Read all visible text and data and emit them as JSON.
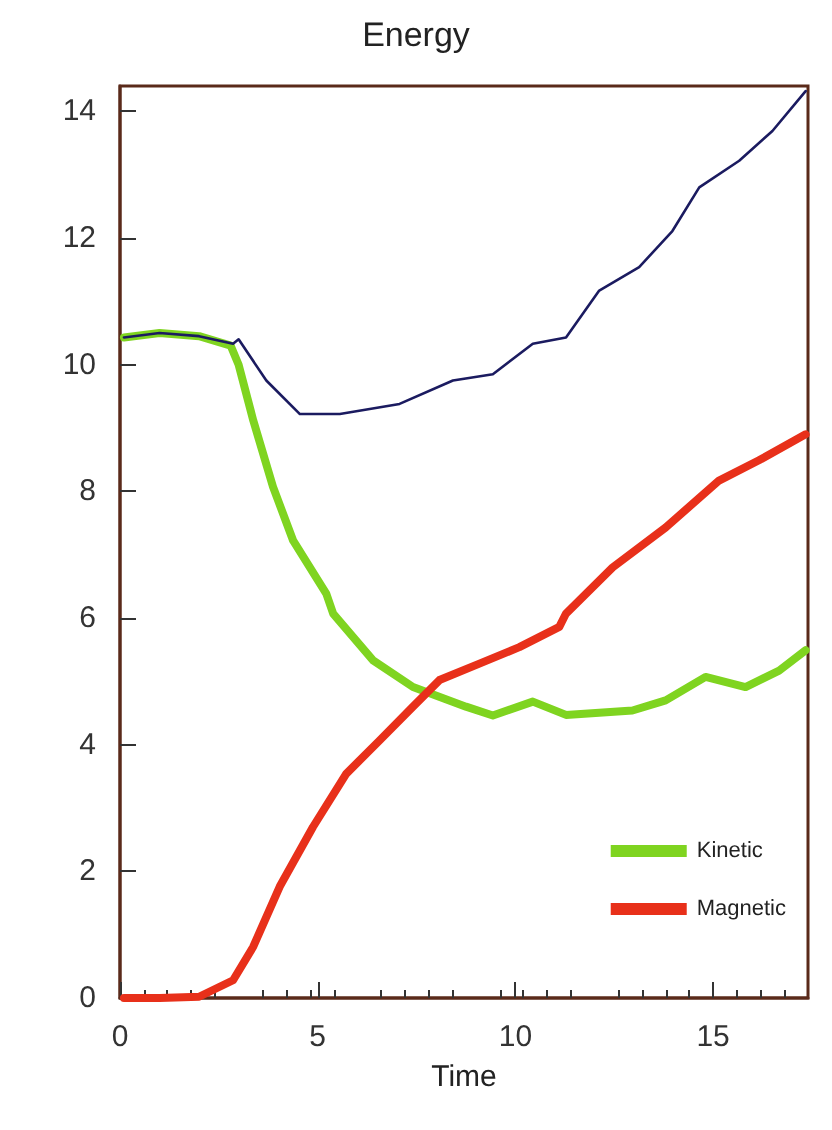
{
  "chart_data": {
    "type": "line",
    "title": "Energy",
    "xlabel": "Time",
    "xlim": [
      0,
      17.4
    ],
    "xticks": [
      0,
      5,
      10,
      15
    ],
    "ylim": [
      0,
      14.4
    ],
    "yticks": [
      0,
      2,
      4,
      6,
      8,
      10,
      12,
      14
    ],
    "grid": false,
    "legend": "bottom right",
    "marker": "none",
    "line_style": "solid",
    "series": [
      {
        "color": "#1b1b60",
        "x": [
          0.1,
          1.0,
          2.0,
          2.86,
          3.0,
          3.7,
          4.55,
          5.56,
          7.07,
          8.42,
          9.43,
          10.44,
          11.28,
          12.12,
          13.13,
          13.97,
          14.65,
          15.66,
          16.5,
          17.34
        ],
        "values": [
          10.43,
          10.5,
          10.45,
          10.33,
          10.4,
          9.75,
          9.22,
          9.22,
          9.38,
          9.75,
          9.85,
          10.33,
          10.43,
          11.17,
          11.54,
          12.11,
          12.8,
          13.22,
          13.69,
          14.32
        ]
      },
      {
        "name": "Kinetic",
        "color": "#7fd420",
        "x": [
          0.1,
          1.0,
          2.0,
          2.8,
          3.0,
          3.37,
          3.87,
          4.38,
          5.22,
          5.39,
          6.4,
          7.41,
          8.75,
          9.43,
          10.44,
          11.28,
          12.96,
          13.8,
          14.81,
          15.82,
          16.67,
          17.34
        ],
        "values": [
          10.43,
          10.5,
          10.45,
          10.3,
          10.0,
          9.12,
          8.07,
          7.22,
          6.38,
          6.07,
          5.33,
          4.91,
          4.6,
          4.46,
          4.68,
          4.47,
          4.54,
          4.7,
          5.07,
          4.91,
          5.17,
          5.49
        ]
      },
      {
        "name": "Magnetic",
        "color": "#e8301a",
        "x": [
          0.1,
          1.0,
          2.0,
          2.86,
          3.37,
          4.04,
          4.88,
          5.72,
          6.57,
          7.41,
          8.08,
          9.09,
          10.1,
          11.11,
          11.28,
          12.46,
          13.8,
          15.15,
          16.16,
          17.34
        ],
        "values": [
          0,
          0,
          0.02,
          0.28,
          0.81,
          1.76,
          2.7,
          3.54,
          4.07,
          4.6,
          5.02,
          5.28,
          5.54,
          5.86,
          6.07,
          6.8,
          7.43,
          8.17,
          8.49,
          8.9
        ]
      }
    ]
  }
}
